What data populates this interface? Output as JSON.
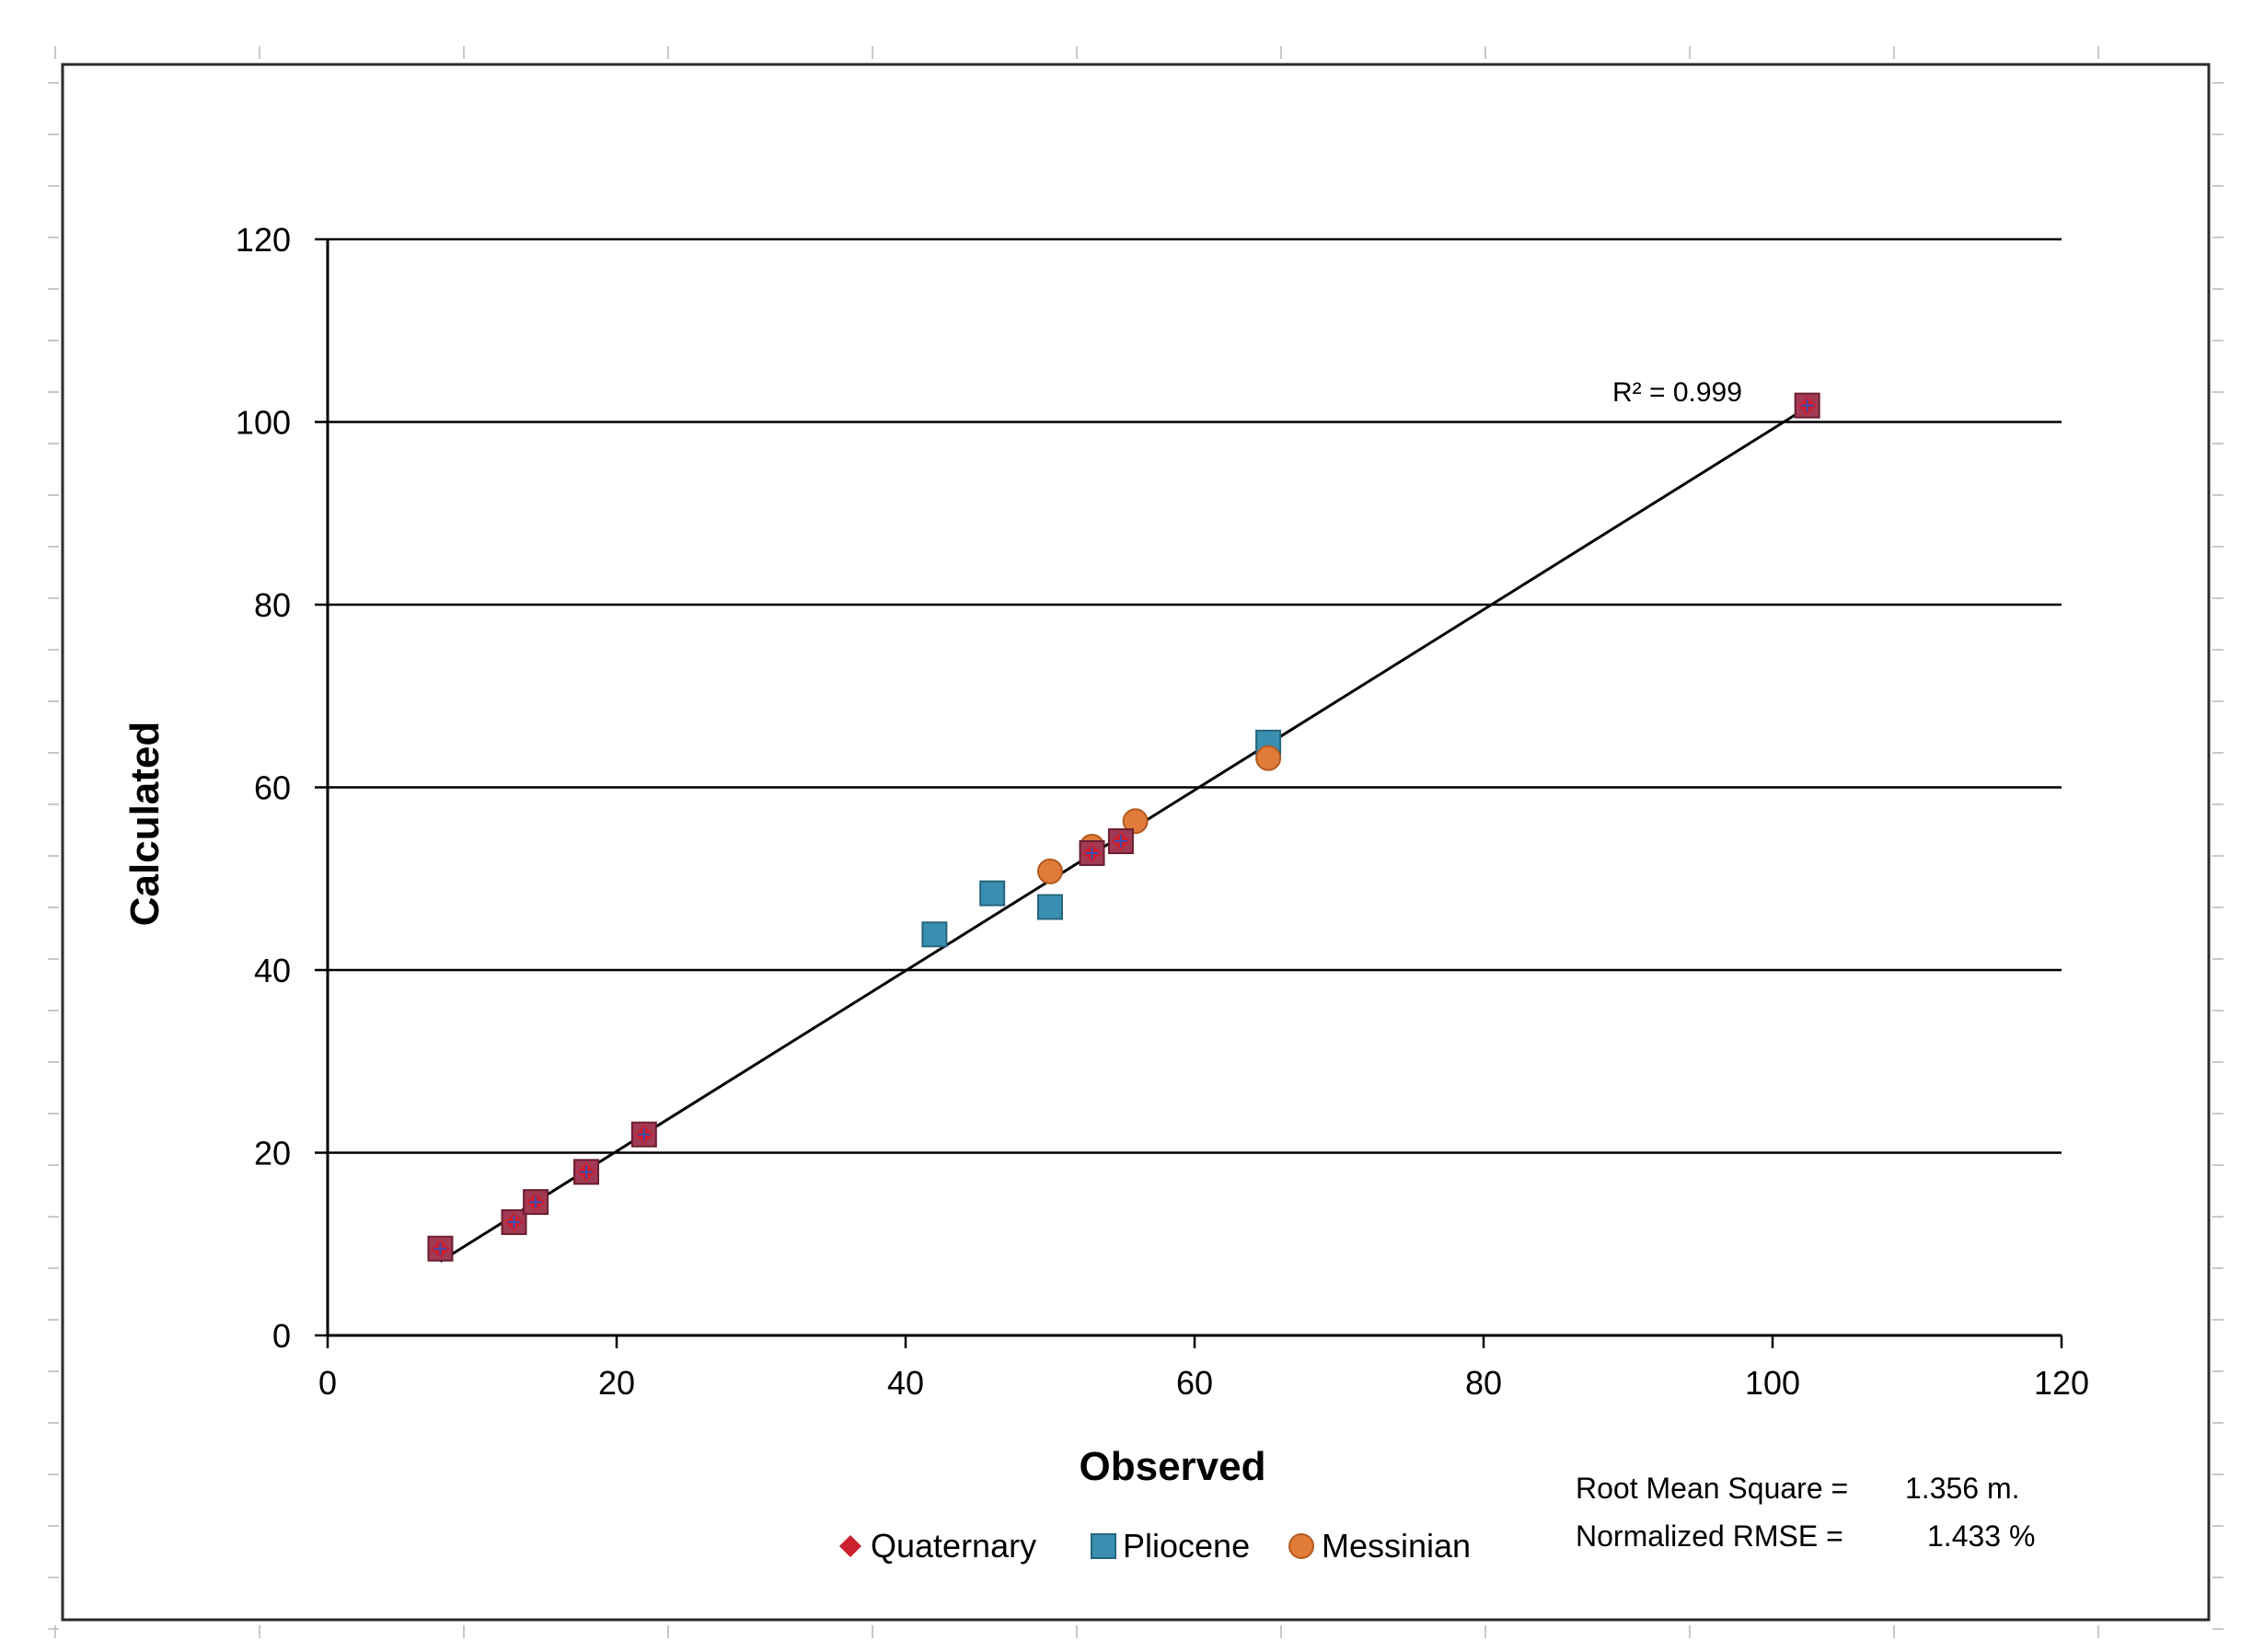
{
  "chart_data": {
    "type": "scatter",
    "xlabel": "Observed",
    "ylabel": "Calculated",
    "xlim": [
      0,
      120
    ],
    "ylim": [
      0,
      120
    ],
    "x_ticks": [
      "0",
      "20",
      "40",
      "60",
      "80",
      "100",
      "120"
    ],
    "y_ticks": [
      "0",
      "20",
      "40",
      "60",
      "80",
      "100",
      "120"
    ],
    "grid": "horizontal",
    "legend_position": "bottom",
    "series": [
      {
        "name": "Quaternary",
        "marker": "diamond",
        "color": "#cc1f2e",
        "points": [
          {
            "x": 7.8,
            "y": 9.5
          },
          {
            "x": 12.9,
            "y": 12.4
          },
          {
            "x": 14.4,
            "y": 14.6
          },
          {
            "x": 17.9,
            "y": 17.9
          },
          {
            "x": 21.9,
            "y": 22.0
          },
          {
            "x": 52.9,
            "y": 52.8
          },
          {
            "x": 54.9,
            "y": 54.1
          },
          {
            "x": 102.4,
            "y": 101.8
          }
        ]
      },
      {
        "name": "Pliocene",
        "marker": "square",
        "color": "#3a8fb0",
        "points": [
          {
            "x": 42.0,
            "y": 43.9
          },
          {
            "x": 46.0,
            "y": 48.4
          },
          {
            "x": 50.0,
            "y": 46.9
          },
          {
            "x": 65.1,
            "y": 64.9
          }
        ]
      },
      {
        "name": "Messinian",
        "marker": "circle",
        "color": "#e07b39",
        "points": [
          {
            "x": 50.0,
            "y": 50.8
          },
          {
            "x": 52.9,
            "y": 53.5
          },
          {
            "x": 55.9,
            "y": 56.3
          },
          {
            "x": 65.1,
            "y": 63.2
          }
        ]
      }
    ],
    "trendline": {
      "x_start": 7.8,
      "y_start": 8.1,
      "x_end": 102.4,
      "y_end": 101.6,
      "label": "R² = 0.999"
    },
    "stats": {
      "rms_label": "Root Mean Square =",
      "rms_value": "1.356 m.",
      "nrmse_label": "Normalized RMSE =",
      "nrmse_value": "1.433 %"
    },
    "colors": {
      "quaternary_square_fill": "#a33a55",
      "quaternary_square_stroke": "#6a1f30",
      "axis": "#000000",
      "grid": "#000000"
    }
  }
}
